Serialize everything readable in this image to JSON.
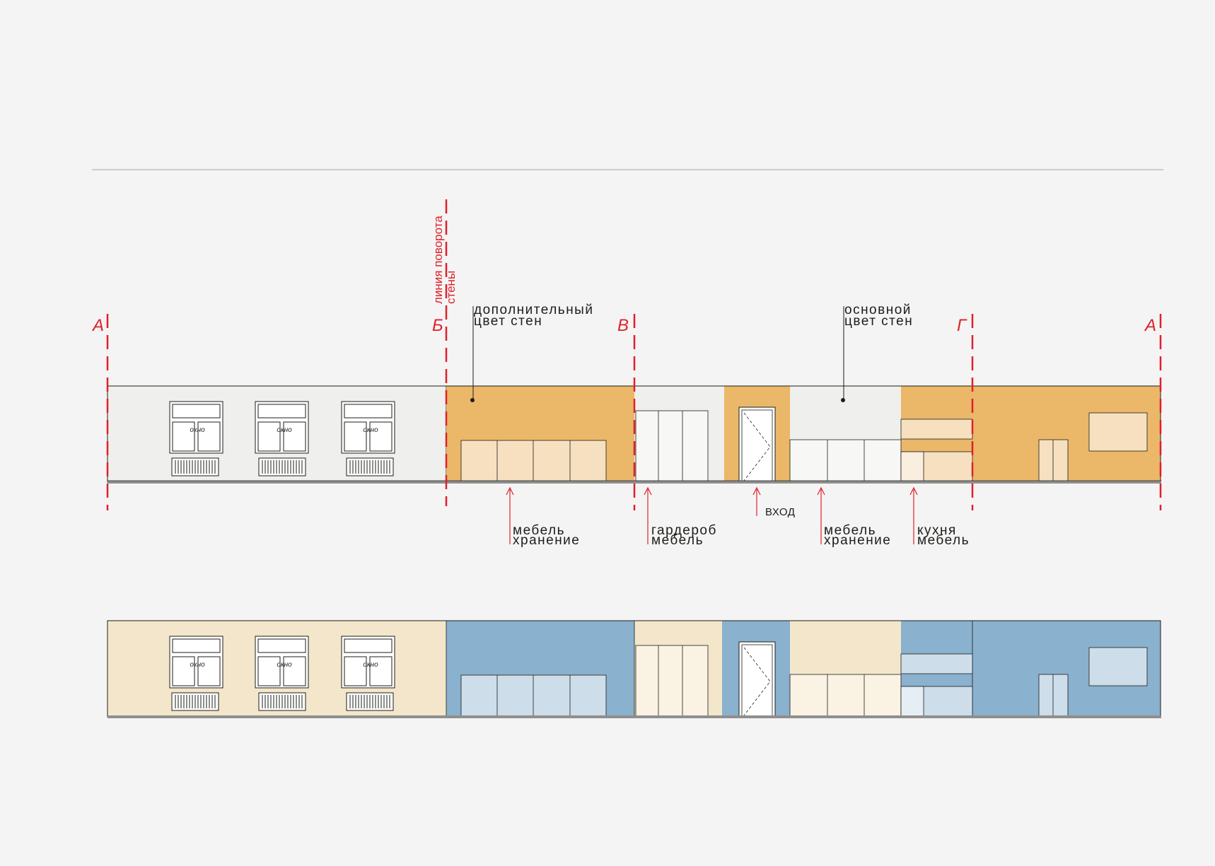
{
  "section_markers": [
    "А",
    "Б",
    "В",
    "Г",
    "А"
  ],
  "rotation_line_label": [
    "линия поворота",
    "стены"
  ],
  "callouts": {
    "accent_color": [
      "дополнительный",
      "цвет стен"
    ],
    "main_color": [
      "основной",
      "цвет стен"
    ]
  },
  "window_label": "окно",
  "furniture_labels": {
    "storage_1": [
      "мебель",
      "хранение"
    ],
    "wardrobe": [
      "гардероб",
      "мебель"
    ],
    "entrance": "вход",
    "storage_2": [
      "мебель",
      "хранение"
    ],
    "kitchen": [
      "кухня",
      "мебель"
    ]
  },
  "colors": {
    "background": "#f4f4f4",
    "marker_red": "#e0202a",
    "scheme_1_main": "#efefed",
    "scheme_1_accent": "#ebb768",
    "scheme_1_furniture_accent": "#f6e0c0",
    "scheme_2_main": "#f3e6ca",
    "scheme_2_accent": "#8ab1ce",
    "scheme_2_furniture_accent": "#cddeea",
    "floor_strip": "#8f8f8f"
  }
}
